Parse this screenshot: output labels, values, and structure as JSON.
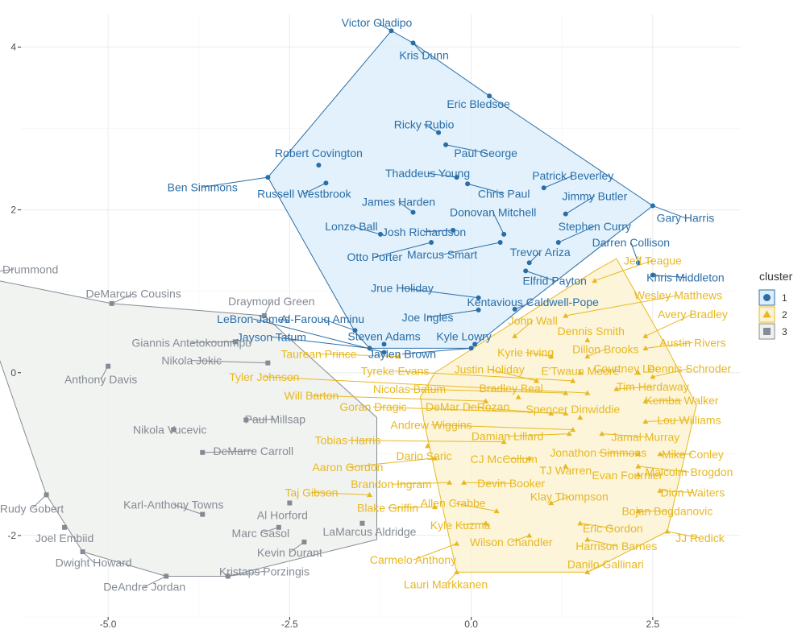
{
  "chart_data": {
    "type": "scatter",
    "title": "",
    "xlabel": "",
    "ylabel": "",
    "xlim": [
      -6.2,
      3.7
    ],
    "ylim": [
      -3.0,
      4.4
    ],
    "x_ticks": [
      {
        "value": -5.0,
        "label": "-5.0"
      },
      {
        "value": -2.5,
        "label": "-2.5"
      },
      {
        "value": 0.0,
        "label": "0.0"
      },
      {
        "value": 2.5,
        "label": "2.5"
      }
    ],
    "y_ticks": [
      {
        "value": -2,
        "label": "-2"
      },
      {
        "value": 0,
        "label": "0"
      },
      {
        "value": 2,
        "label": "2"
      },
      {
        "value": 4,
        "label": "4"
      }
    ],
    "grid": true,
    "legend": {
      "title": "cluster",
      "position": "right",
      "entries": [
        "1",
        "2",
        "3"
      ]
    },
    "clusters": [
      {
        "name": "1",
        "color": "#2a6ea8",
        "fill": "#ddeefa",
        "marker": "circle",
        "hull": [
          [
            -1.1,
            4.2
          ],
          [
            -2.8,
            2.4
          ],
          [
            -1.6,
            0.5
          ],
          [
            -1.4,
            0.3
          ],
          [
            0,
            0.3
          ],
          [
            0.7,
            0.8
          ],
          [
            2.5,
            2.05
          ],
          [
            0.25,
            3.4
          ],
          [
            -0.8,
            4.05
          ]
        ],
        "points": [
          {
            "name": "Victor Oladipo",
            "x": -1.1,
            "y": 4.2,
            "lx": -1.3,
            "ly": 4.3
          },
          {
            "name": "Kris Dunn",
            "x": -0.8,
            "y": 4.05,
            "lx": -0.65,
            "ly": 3.9
          },
          {
            "name": "Eric Bledsoe",
            "x": 0.25,
            "y": 3.4,
            "lx": 0.1,
            "ly": 3.3
          },
          {
            "name": "Ricky Rubio",
            "x": -0.45,
            "y": 2.95,
            "lx": -0.65,
            "ly": 3.05
          },
          {
            "name": "Paul George",
            "x": -0.35,
            "y": 2.8,
            "lx": 0.2,
            "ly": 2.7
          },
          {
            "name": "Robert Covington",
            "x": -2.1,
            "y": 2.55,
            "lx": -2.1,
            "ly": 2.7
          },
          {
            "name": "Thaddeus Young",
            "x": -0.2,
            "y": 2.4,
            "lx": -0.6,
            "ly": 2.45
          },
          {
            "name": "Patrick Beverley",
            "x": 1.0,
            "y": 2.27,
            "lx": 1.4,
            "ly": 2.42
          },
          {
            "name": "Chris Paul",
            "x": -0.05,
            "y": 2.32,
            "lx": 0.45,
            "ly": 2.2
          },
          {
            "name": "Ben Simmons",
            "x": -2.8,
            "y": 2.4,
            "lx": -3.7,
            "ly": 2.28
          },
          {
            "name": "Russell Westbrook",
            "x": -2.0,
            "y": 2.33,
            "lx": -2.3,
            "ly": 2.2
          },
          {
            "name": "Jimmy Butler",
            "x": 1.3,
            "y": 1.95,
            "lx": 1.7,
            "ly": 2.17
          },
          {
            "name": "James Harden",
            "x": -0.8,
            "y": 1.97,
            "lx": -1.0,
            "ly": 2.1
          },
          {
            "name": "Gary Harris",
            "x": 2.5,
            "y": 2.05,
            "lx": 2.95,
            "ly": 1.9
          },
          {
            "name": "Donovan Mitchell",
            "x": 0.45,
            "y": 1.7,
            "lx": 0.3,
            "ly": 1.97
          },
          {
            "name": "Stephen Curry",
            "x": 1.2,
            "y": 1.6,
            "lx": 1.7,
            "ly": 1.8
          },
          {
            "name": "Lonzo Ball",
            "x": -1.25,
            "y": 1.7,
            "lx": -1.65,
            "ly": 1.8
          },
          {
            "name": "Josh Richardson",
            "x": -0.25,
            "y": 1.75,
            "lx": -0.65,
            "ly": 1.73
          },
          {
            "name": "Darren Collison",
            "x": 2.3,
            "y": 1.35,
            "lx": 2.2,
            "ly": 1.6
          },
          {
            "name": "Marcus Smart",
            "x": 0.4,
            "y": 1.6,
            "lx": -0.4,
            "ly": 1.45
          },
          {
            "name": "Otto Porter",
            "x": -0.55,
            "y": 1.6,
            "lx": -1.33,
            "ly": 1.42
          },
          {
            "name": "Trevor Ariza",
            "x": 0.8,
            "y": 1.35,
            "lx": 0.95,
            "ly": 1.48
          },
          {
            "name": "Elfrid Payton",
            "x": 0.75,
            "y": 1.25,
            "lx": 1.15,
            "ly": 1.13
          },
          {
            "name": "Khris Middleton",
            "x": 2.5,
            "y": 1.2,
            "lx": 2.95,
            "ly": 1.17
          },
          {
            "name": "Jrue Holiday",
            "x": 0.1,
            "y": 0.92,
            "lx": -0.95,
            "ly": 1.04
          },
          {
            "name": "Kentavious Caldwell-Pope",
            "x": 0.6,
            "y": 0.78,
            "lx": 0.85,
            "ly": 0.87
          },
          {
            "name": "Joe Ingles",
            "x": 0.1,
            "y": 0.77,
            "lx": -0.6,
            "ly": 0.68
          },
          {
            "name": "Al-Farouq Aminu",
            "x": -1.6,
            "y": 0.52,
            "lx": -2.05,
            "ly": 0.66
          },
          {
            "name": "Steven Adams",
            "x": -1.2,
            "y": 0.35,
            "lx": -1.2,
            "ly": 0.45
          },
          {
            "name": "Kyle Lowry",
            "x": 0.05,
            "y": 0.35,
            "lx": -0.1,
            "ly": 0.45
          },
          {
            "name": "Jaylen Brown",
            "x": 0.0,
            "y": 0.3,
            "lx": -0.95,
            "ly": 0.23
          },
          {
            "name": "Jayson Tatum",
            "x": -1.4,
            "y": 0.3,
            "lx": -2.75,
            "ly": 0.44
          },
          {
            "name": "LeBron James",
            "x": -1.2,
            "y": 0.25,
            "lx": -3.0,
            "ly": 0.66
          }
        ]
      },
      {
        "name": "2",
        "color": "#e8b820",
        "fill": "#fcf3d4",
        "marker": "triangle",
        "hull": [
          [
            -0.65,
            -0.6
          ],
          [
            -0.2,
            -2.45
          ],
          [
            1.6,
            -2.45
          ],
          [
            2.7,
            -1.95
          ],
          [
            3.1,
            -0.4
          ],
          [
            2.7,
            0.3
          ],
          [
            2.0,
            1.4
          ],
          [
            1.7,
            1.25
          ],
          [
            -0.5,
            0.0
          ],
          [
            -0.7,
            -0.3
          ]
        ],
        "points": [
          {
            "name": "Jeff Teague",
            "x": 1.7,
            "y": 1.13,
            "lx": 2.5,
            "ly": 1.38
          },
          {
            "name": "Wesley Matthews",
            "x": 1.3,
            "y": 0.7,
            "lx": 2.85,
            "ly": 0.95
          },
          {
            "name": "Avery Bradley",
            "x": 2.4,
            "y": 0.45,
            "lx": 3.05,
            "ly": 0.72
          },
          {
            "name": "John Wall",
            "x": 0.6,
            "y": 0.45,
            "lx": 0.85,
            "ly": 0.64
          },
          {
            "name": "Dennis Smith",
            "x": 1.6,
            "y": 0.4,
            "lx": 1.65,
            "ly": 0.51
          },
          {
            "name": "Austin Rivers",
            "x": 2.4,
            "y": 0.3,
            "lx": 3.05,
            "ly": 0.37
          },
          {
            "name": "Kyrie Irving",
            "x": 1.1,
            "y": 0.2,
            "lx": 0.75,
            "ly": 0.25
          },
          {
            "name": "Dillon Brooks",
            "x": 1.6,
            "y": 0.2,
            "lx": 1.85,
            "ly": 0.29
          },
          {
            "name": "Taurean Prince",
            "x": -1.0,
            "y": 0.2,
            "lx": -2.1,
            "ly": 0.23
          },
          {
            "name": "Dennis Schroder",
            "x": 2.5,
            "y": -0.05,
            "lx": 3.0,
            "ly": 0.05
          },
          {
            "name": "Courtney Lee",
            "x": 2.3,
            "y": 0.0,
            "lx": 2.15,
            "ly": 0.05
          },
          {
            "name": "E'Twaun Moore",
            "x": 1.5,
            "y": 0.0,
            "lx": 1.5,
            "ly": 0.02
          },
          {
            "name": "Tyreke Evans",
            "x": 1.4,
            "y": -0.1,
            "lx": -1.05,
            "ly": 0.02
          },
          {
            "name": "Justin Holiday",
            "x": 0.9,
            "y": -0.1,
            "lx": 0.25,
            "ly": 0.04
          },
          {
            "name": "Tim Hardaway",
            "x": 2.0,
            "y": -0.2,
            "lx": 2.5,
            "ly": -0.17
          },
          {
            "name": "Tyler Johnson",
            "x": 1.6,
            "y": -0.25,
            "lx": -2.85,
            "ly": -0.05
          },
          {
            "name": "Nicolas Batum",
            "x": 1.3,
            "y": -0.25,
            "lx": -0.85,
            "ly": -0.2
          },
          {
            "name": "Bradley Beal",
            "x": 0.65,
            "y": -0.3,
            "lx": 0.55,
            "ly": -0.19
          },
          {
            "name": "Will Barton",
            "x": 0.2,
            "y": -0.35,
            "lx": -2.2,
            "ly": -0.28
          },
          {
            "name": "Kemba Walker",
            "x": 2.4,
            "y": -0.35,
            "lx": 2.9,
            "ly": -0.34
          },
          {
            "name": "Goran Dragic",
            "x": 1.3,
            "y": -0.5,
            "lx": -1.35,
            "ly": -0.42
          },
          {
            "name": "DeMar DeRozan",
            "x": 1.1,
            "y": -0.5,
            "lx": -0.05,
            "ly": -0.42
          },
          {
            "name": "Spencer Dinwiddie",
            "x": 1.5,
            "y": -0.55,
            "lx": 1.4,
            "ly": -0.45
          },
          {
            "name": "Lou Williams",
            "x": 2.4,
            "y": -0.6,
            "lx": 3.0,
            "ly": -0.58
          },
          {
            "name": "Andrew Wiggins",
            "x": 1.4,
            "y": -0.7,
            "lx": -0.55,
            "ly": -0.64
          },
          {
            "name": "Damian Lillard",
            "x": 1.35,
            "y": -0.75,
            "lx": 0.5,
            "ly": -0.78
          },
          {
            "name": "Jamal Murray",
            "x": 1.8,
            "y": -0.75,
            "lx": 2.4,
            "ly": -0.79
          },
          {
            "name": "Tobias Harris",
            "x": 0.45,
            "y": -0.85,
            "lx": -1.7,
            "ly": -0.83
          },
          {
            "name": "Mike Conley",
            "x": 2.6,
            "y": -1.0,
            "lx": 3.05,
            "ly": -1.0
          },
          {
            "name": "Jonathon Simmons",
            "x": 2.3,
            "y": -1.0,
            "lx": 1.75,
            "ly": -0.98
          },
          {
            "name": "Dario Saric",
            "x": -0.6,
            "y": -0.9,
            "lx": -0.65,
            "ly": -1.02
          },
          {
            "name": "CJ McCollum",
            "x": 0.8,
            "y": -1.05,
            "lx": 0.45,
            "ly": -1.06
          },
          {
            "name": "Aaron Gordon",
            "x": -0.5,
            "y": -1.05,
            "lx": -1.7,
            "ly": -1.16
          },
          {
            "name": "Malcolm Brogdon",
            "x": 2.3,
            "y": -1.15,
            "lx": 3.0,
            "ly": -1.22
          },
          {
            "name": "TJ Warren",
            "x": 1.3,
            "y": -1.15,
            "lx": 1.3,
            "ly": -1.2
          },
          {
            "name": "Evan Fournier",
            "x": 2.3,
            "y": -1.25,
            "lx": 2.15,
            "ly": -1.26
          },
          {
            "name": "Devin Booker",
            "x": -0.1,
            "y": -1.35,
            "lx": 0.55,
            "ly": -1.36
          },
          {
            "name": "Brandon Ingram",
            "x": -0.3,
            "y": -1.35,
            "lx": -1.1,
            "ly": -1.37
          },
          {
            "name": "Taj Gibson",
            "x": -1.4,
            "y": -1.5,
            "lx": -2.2,
            "ly": -1.47
          },
          {
            "name": "Dion Waiters",
            "x": 2.6,
            "y": -1.45,
            "lx": 3.05,
            "ly": -1.47
          },
          {
            "name": "Klay Thompson",
            "x": 1.1,
            "y": -1.6,
            "lx": 1.35,
            "ly": -1.52
          },
          {
            "name": "Allen Crabbe",
            "x": 0.35,
            "y": -1.7,
            "lx": -0.25,
            "ly": -1.6
          },
          {
            "name": "Blake Griffin",
            "x": -0.5,
            "y": -1.65,
            "lx": -1.15,
            "ly": -1.66
          },
          {
            "name": "Bojan Bogdanovic",
            "x": 2.3,
            "y": -1.7,
            "lx": 2.7,
            "ly": -1.7
          },
          {
            "name": "Kyle Kuzma",
            "x": 0.2,
            "y": -1.85,
            "lx": -0.15,
            "ly": -1.87
          },
          {
            "name": "Eric Gordon",
            "x": 1.5,
            "y": -1.85,
            "lx": 1.95,
            "ly": -1.91
          },
          {
            "name": "JJ Redick",
            "x": 2.7,
            "y": -1.95,
            "lx": 3.15,
            "ly": -2.03
          },
          {
            "name": "Wilson Chandler",
            "x": 0.8,
            "y": -2.0,
            "lx": 0.55,
            "ly": -2.08
          },
          {
            "name": "Harrison Barnes",
            "x": 1.6,
            "y": -2.05,
            "lx": 2.0,
            "ly": -2.13
          },
          {
            "name": "Carmelo Anthony",
            "x": -0.2,
            "y": -2.1,
            "lx": -0.8,
            "ly": -2.3
          },
          {
            "name": "Danilo Gallinari",
            "x": 1.6,
            "y": -2.45,
            "lx": 1.85,
            "ly": -2.35
          },
          {
            "name": "Lauri Markkanen",
            "x": -0.2,
            "y": -2.45,
            "lx": -0.35,
            "ly": -2.6
          }
        ]
      },
      {
        "name": "3",
        "color": "#858b94",
        "fill": "#eef1ee",
        "marker": "square",
        "hull": [
          [
            -6.9,
            1.2
          ],
          [
            -5.85,
            -1.5
          ],
          [
            -5.35,
            -2.2
          ],
          [
            -4.2,
            -2.5
          ],
          [
            -3.35,
            -2.5
          ],
          [
            -1.3,
            -2.05
          ],
          [
            -1.3,
            -0.55
          ],
          [
            -2.85,
            0.7
          ],
          [
            -4.95,
            0.85
          ]
        ],
        "points": [
          {
            "name": "Andre Drummond",
            "x": -6.9,
            "y": 1.2,
            "lx": -6.3,
            "ly": 1.27
          },
          {
            "name": "DeMarcus Cousins",
            "x": -4.95,
            "y": 0.85,
            "lx": -4.65,
            "ly": 0.97
          },
          {
            "name": "Draymond Green",
            "x": -2.85,
            "y": 0.7,
            "lx": -2.75,
            "ly": 0.88
          },
          {
            "name": "Giannis Antetokounmpo",
            "x": -3.25,
            "y": 0.38,
            "lx": -3.85,
            "ly": 0.37
          },
          {
            "name": "Nikola Jokic",
            "x": -2.8,
            "y": 0.12,
            "lx": -3.85,
            "ly": 0.15
          },
          {
            "name": "Anthony Davis",
            "x": -5.0,
            "y": 0.08,
            "lx": -5.1,
            "ly": -0.08
          },
          {
            "name": "Paul Millsap",
            "x": -3.1,
            "y": -0.58,
            "lx": -2.7,
            "ly": -0.57
          },
          {
            "name": "Nikola Vucevic",
            "x": -4.1,
            "y": -0.7,
            "lx": -4.15,
            "ly": -0.7
          },
          {
            "name": "DeMarre Carroll",
            "x": -3.7,
            "y": -0.98,
            "lx": -3.0,
            "ly": -0.96
          },
          {
            "name": "Karl-Anthony Towns",
            "x": -3.7,
            "y": -1.74,
            "lx": -4.1,
            "ly": -1.62
          },
          {
            "name": "Rudy Gobert",
            "x": -5.85,
            "y": -1.5,
            "lx": -6.05,
            "ly": -1.67
          },
          {
            "name": "Al Horford",
            "x": -2.5,
            "y": -1.6,
            "lx": -2.6,
            "ly": -1.75
          },
          {
            "name": "Joel Embiid",
            "x": -5.6,
            "y": -1.9,
            "lx": -5.6,
            "ly": -2.03
          },
          {
            "name": "Marc Gasol",
            "x": -2.65,
            "y": -1.9,
            "lx": -2.9,
            "ly": -1.97
          },
          {
            "name": "LaMarcus Aldridge",
            "x": -1.5,
            "y": -1.85,
            "lx": -1.4,
            "ly": -1.95
          },
          {
            "name": "Dwight Howard",
            "x": -5.35,
            "y": -2.2,
            "lx": -5.2,
            "ly": -2.33
          },
          {
            "name": "Kevin Durant",
            "x": -2.3,
            "y": -2.08,
            "lx": -2.5,
            "ly": -2.21
          },
          {
            "name": "Kristaps Porzingis",
            "x": -3.35,
            "y": -2.5,
            "lx": -2.85,
            "ly": -2.44
          },
          {
            "name": "DeAndre Jordan",
            "x": -4.2,
            "y": -2.5,
            "lx": -4.5,
            "ly": -2.63
          }
        ]
      }
    ]
  }
}
